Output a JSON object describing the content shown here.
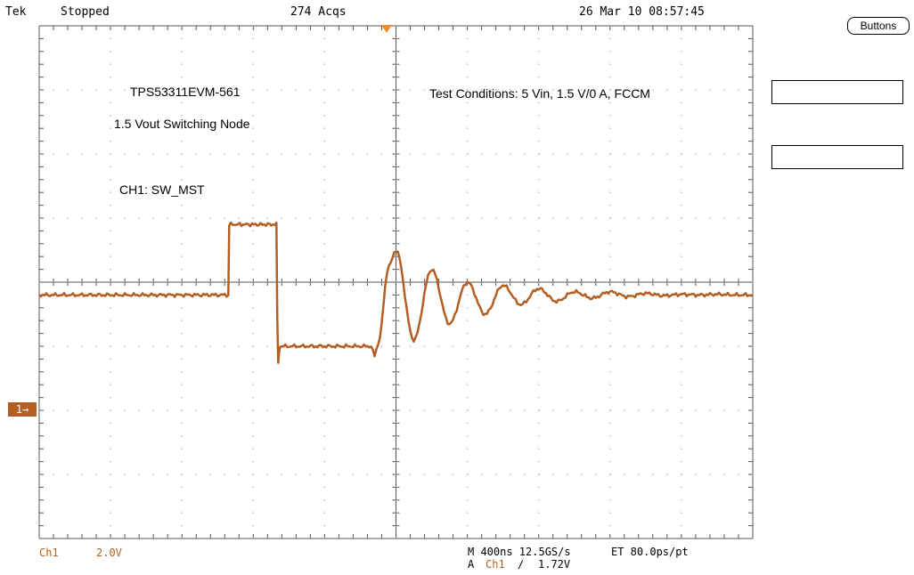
{
  "status_bar": {
    "brand": "Tek",
    "state": "Stopped",
    "acquisitions": "274 Acqs",
    "datetime": "26 Mar 10 08:57:45"
  },
  "annotations": {
    "title": "TPS53311EVM-561",
    "subtitle": "1.5 Vout Switching Node",
    "channel": "CH1: SW_MST",
    "conditions": "Test Conditions: 5 Vin, 1.5 V/0 A, FCCM"
  },
  "side_menu": {
    "buttons_label": "Buttons"
  },
  "channel_marker": "1→",
  "readout": {
    "channel": "Ch1",
    "scale": "2.0V",
    "timebase": "M 400ns 12.5GS/s",
    "et": "ET 80.0ps/pt",
    "trigger_mode": "A",
    "trigger_channel": "Ch1",
    "trigger_slope": "∕",
    "trigger_level": "1.72V"
  },
  "colors": {
    "trace": "#b35e22",
    "grid": "#555555",
    "trigger_marker": "#f08a2c"
  },
  "chart_data": {
    "type": "line",
    "divisions": {
      "horizontal": 10,
      "vertical": 8
    },
    "volts_per_div": 2.0,
    "time_per_div_ns": 400,
    "ground_level_div_from_top": 5,
    "series": [
      {
        "x_ns": [
          0,
          1060,
          1065,
          1330,
          1335,
          1340,
          1345,
          1350,
          1860,
          1880,
          1900,
          1960,
          2000,
          2100,
          2200,
          2300,
          2400,
          2500,
          2600,
          2700,
          2800,
          2900,
          3000,
          3100,
          3200,
          3300,
          3400,
          3500,
          3600,
          3700,
          3800,
          3900,
          4000
        ],
        "y_v": [
          1.6,
          1.6,
          3.8,
          3.8,
          0.8,
          -0.5,
          -0.2,
          0.0,
          0.0,
          -0.3,
          0.1,
          2.5,
          3.0,
          0.2,
          2.4,
          0.7,
          2.0,
          1.0,
          1.9,
          1.3,
          1.8,
          1.4,
          1.7,
          1.5,
          1.7,
          1.55,
          1.65,
          1.58,
          1.62,
          1.6,
          1.62,
          1.6,
          1.6
        ]
      }
    ]
  }
}
